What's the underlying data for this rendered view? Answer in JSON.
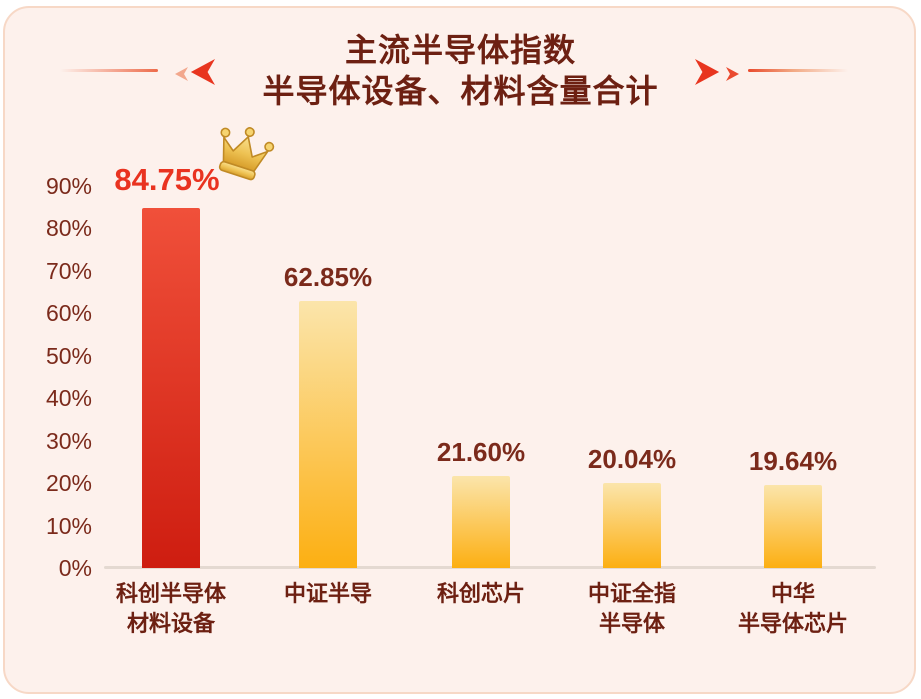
{
  "header": {
    "title_line1": "主流半导体指数",
    "title_line2": "半导体设备、材料含量合计"
  },
  "decorations": {
    "left": "double-chevron-left with fading line",
    "right": "double-chevron-right with fading line",
    "winner_badge": "crown-icon on first bar"
  },
  "chart_data": {
    "type": "bar",
    "title": "主流半导体指数 半导体设备、材料含量合计",
    "categories": [
      "科创半导体\n材料设备",
      "中证半导",
      "科创芯片",
      "中证全指\n半导体",
      "中华\n半导体芯片"
    ],
    "values": [
      84.75,
      62.85,
      21.6,
      20.04,
      19.64
    ],
    "value_labels": [
      "84.75%",
      "62.85%",
      "21.60%",
      "20.04%",
      "19.64%"
    ],
    "yticks": [
      "0%",
      "10%",
      "20%",
      "30%",
      "40%",
      "50%",
      "60%",
      "70%",
      "80%",
      "90%"
    ],
    "ylim": [
      0,
      90
    ],
    "xlabel": "",
    "ylabel": "",
    "grid": false,
    "legend": null,
    "highlight_index": 0
  },
  "colors": {
    "page_bg": "#FFFFFF",
    "card_bg": "#FDF1EC",
    "card_border": "#F7D8C6",
    "title_text": "#6D2012",
    "axis_text": "#7B2A1B",
    "accent_red": "#E93320",
    "chevron_red": "#E8351F",
    "chevron_soft": "#F2A78C",
    "bar_red_top": "#F0503A",
    "bar_red_bottom": "#CE1D10",
    "bar_gold_top": "#FBE5AB",
    "bar_gold_bottom": "#FCAF12",
    "axis_line": "#E4D9D1",
    "crown_gold": "#EEC253"
  }
}
